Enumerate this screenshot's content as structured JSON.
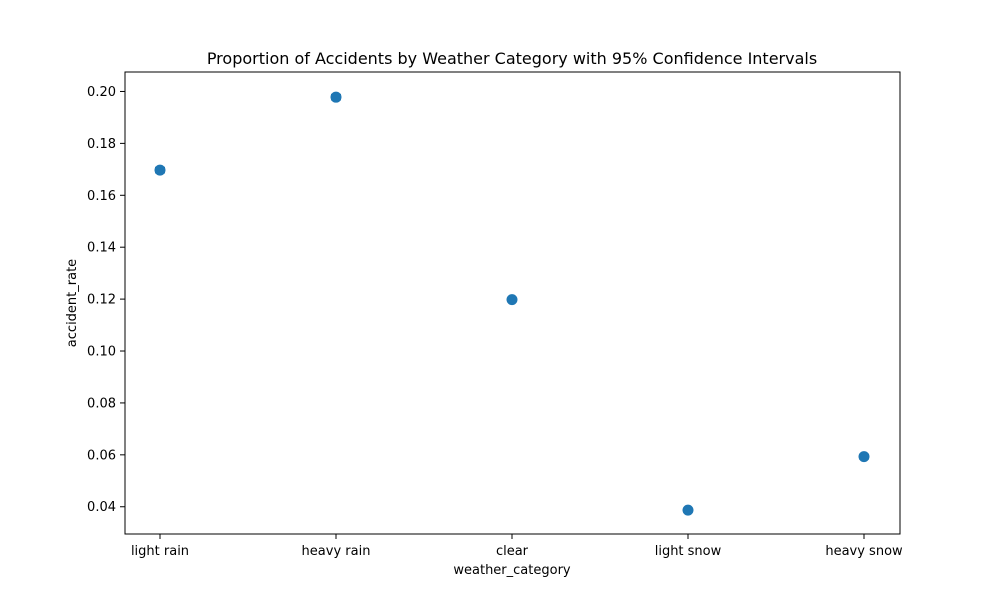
{
  "chart_data": {
    "type": "scatter",
    "title": "Proportion of Accidents by Weather Category with 95% Confidence Intervals",
    "xlabel": "weather_category",
    "ylabel": "accident_rate",
    "categories": [
      "light rain",
      "heavy rain",
      "clear",
      "light snow",
      "heavy snow"
    ],
    "series": [
      {
        "name": "accident_rate",
        "values": [
          0.1697,
          0.1978,
          0.1198,
          0.0387,
          0.0593
        ],
        "ci_low": [
          0.1687,
          0.1968,
          0.1193,
          0.038,
          0.0585
        ],
        "ci_high": [
          0.1707,
          0.1988,
          0.1203,
          0.0394,
          0.0601
        ]
      }
    ],
    "ylim": [
      0.0295,
      0.2075
    ],
    "yticks": [
      0.04,
      0.06,
      0.08,
      0.1,
      0.12,
      0.14,
      0.16,
      0.18,
      0.2
    ],
    "ytick_labels": [
      "0.04",
      "0.06",
      "0.08",
      "0.10",
      "0.12",
      "0.14",
      "0.16",
      "0.18",
      "0.20"
    ],
    "grid": false,
    "marker_color": "#1f77b4"
  }
}
